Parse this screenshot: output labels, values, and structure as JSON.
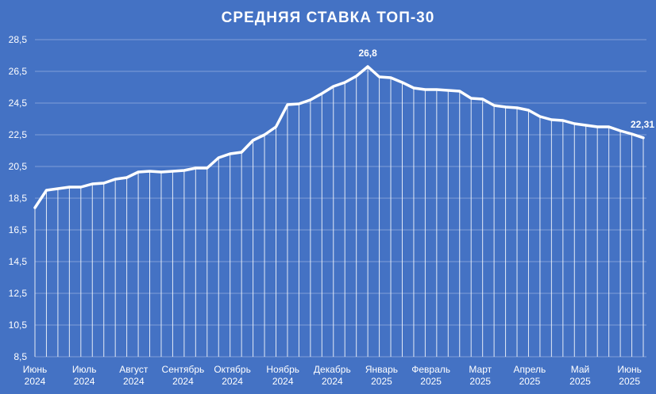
{
  "colors": {
    "background": "#4472c4",
    "line": "#ffffff",
    "grid": "#7f9fd8",
    "drop_lines": "#ffffff"
  },
  "chart_data": {
    "type": "line",
    "title": "СРЕДНЯЯ СТАВКА ТОП-30",
    "xlabel": "",
    "ylabel": "",
    "ylim": [
      8.5,
      28.5
    ],
    "yticks": [
      "8,5",
      "10,5",
      "12,5",
      "14,5",
      "16,5",
      "18,5",
      "20,5",
      "22,5",
      "24,5",
      "26,5",
      "28,5"
    ],
    "grid": true,
    "legend": "none",
    "x_month_labels": [
      {
        "month": "Июнь",
        "year": "2024",
        "index": 0
      },
      {
        "month": "Июль",
        "year": "2024",
        "index": 4.3
      },
      {
        "month": "Август",
        "year": "2024",
        "index": 8.6
      },
      {
        "month": "Сентябрь",
        "year": "2024",
        "index": 12.9
      },
      {
        "month": "Октябрь",
        "year": "2024",
        "index": 17.2
      },
      {
        "month": "Ноябрь",
        "year": "2024",
        "index": 21.6
      },
      {
        "month": "Декабрь",
        "year": "2024",
        "index": 25.9
      },
      {
        "month": "Январь",
        "year": "2025",
        "index": 30.2
      },
      {
        "month": "Февраль",
        "year": "2025",
        "index": 34.5
      },
      {
        "month": "Март",
        "year": "2025",
        "index": 38.8
      },
      {
        "month": "Апрель",
        "year": "2025",
        "index": 43.1
      },
      {
        "month": "Май",
        "year": "2025",
        "index": 47.5
      },
      {
        "month": "Июнь",
        "year": "2025",
        "index": 51.8
      }
    ],
    "series": [
      {
        "values": [
          17.9,
          19.0,
          19.1,
          19.2,
          19.2,
          19.4,
          19.45,
          19.7,
          19.8,
          20.15,
          20.2,
          20.15,
          20.2,
          20.25,
          20.4,
          20.4,
          21.05,
          21.3,
          21.4,
          22.15,
          22.5,
          23.0,
          24.4,
          24.45,
          24.7,
          25.1,
          25.55,
          25.8,
          26.2,
          26.8,
          26.15,
          26.1,
          25.8,
          25.45,
          25.35,
          25.35,
          25.3,
          25.25,
          24.8,
          24.75,
          24.35,
          24.25,
          24.2,
          24.05,
          23.65,
          23.45,
          23.4,
          23.2,
          23.1,
          23.0,
          23.0,
          22.75,
          22.55,
          22.31
        ]
      }
    ],
    "annotations": [
      {
        "index": 29,
        "text": "26,8"
      },
      {
        "index": 53,
        "text": "22,31"
      }
    ]
  }
}
